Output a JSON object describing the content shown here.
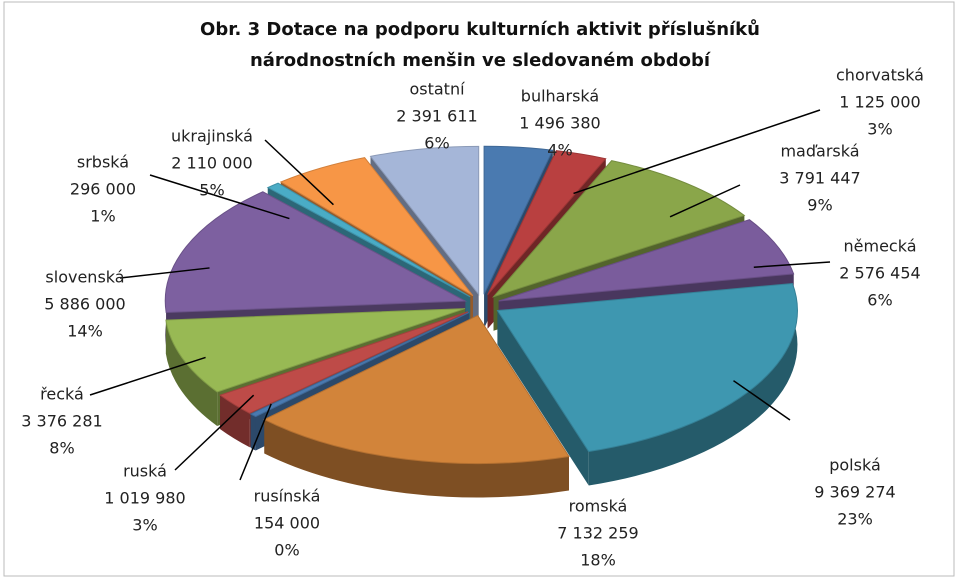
{
  "chart_data": {
    "type": "pie3d",
    "title": [
      "Obr. 3 Dotace na podporu kulturních aktivit příslušníků",
      "národnostních menšin ve sledovaném období"
    ],
    "categories": [
      "bulharská",
      "chorvatská",
      "maďarská",
      "německá",
      "polská",
      "romská",
      "rusínská",
      "ruská",
      "řecká",
      "slovenská",
      "srbská",
      "ukrajinská",
      "ostatní"
    ],
    "values": [
      1496380,
      1125000,
      3791447,
      2576454,
      9369274,
      7132259,
      154000,
      1019980,
      3376281,
      5886000,
      296000,
      2110000,
      2391611
    ],
    "value_labels": [
      "1 496 380",
      "1 125 000",
      "3 791 447",
      "2 576 454",
      "9 369 274",
      "7 132 259",
      "154 000",
      "1 019 980",
      "3 376 281",
      "5 886 000",
      "296 000",
      "2 110 000",
      "2 391 611"
    ],
    "percent_labels": [
      "4%",
      "3%",
      "9%",
      "6%",
      "23%",
      "18%",
      "0%",
      "3%",
      "8%",
      "14%",
      "1%",
      "5%",
      "6%"
    ],
    "colors": [
      "#4a7ab0",
      "#b94040",
      "#8aa64a",
      "#7a5c9c",
      "#3e97b0",
      "#d2843a",
      "#4a7ab0",
      "#be4b48",
      "#98b954",
      "#7d60a0",
      "#4aacc6",
      "#f79646",
      "#a5b6d8"
    ]
  }
}
